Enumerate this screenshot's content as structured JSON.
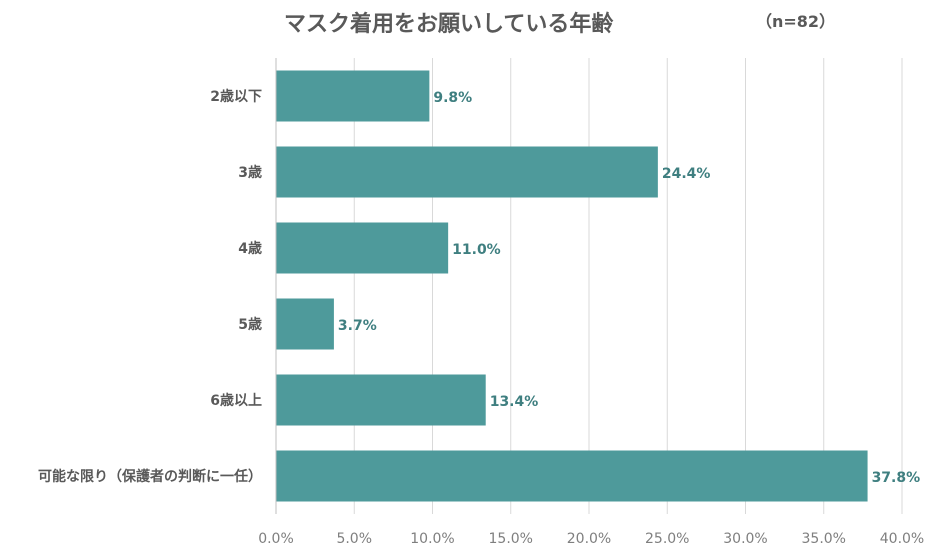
{
  "chart_data": {
    "type": "bar",
    "orientation": "horizontal",
    "title": "マスク着用をお願いしている年齢",
    "note": "（n=82）",
    "categories": [
      "2歳以下",
      "3歳",
      "4歳",
      "5歳",
      "6歳以上",
      "可能な限り（保護者の判断に一任）"
    ],
    "values": [
      9.8,
      24.4,
      11.0,
      3.7,
      13.4,
      37.8
    ],
    "value_labels": [
      "9.8%",
      "24.4%",
      "11.0%",
      "3.7%",
      "13.4%",
      "37.8%"
    ],
    "xlim": [
      0,
      40
    ],
    "xticks": [
      "0.0%",
      "5.0%",
      "10.0%",
      "15.0%",
      "20.0%",
      "25.0%",
      "30.0%",
      "35.0%",
      "40.0%"
    ],
    "grid": true,
    "bar_color": "#4e9a9b",
    "label_color": "#3f7f80"
  }
}
